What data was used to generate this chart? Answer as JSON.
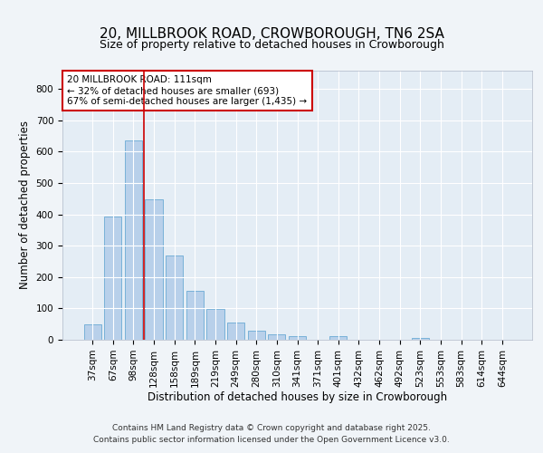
{
  "title_line1": "20, MILLBROOK ROAD, CROWBOROUGH, TN6 2SA",
  "title_line2": "Size of property relative to detached houses in Crowborough",
  "xlabel": "Distribution of detached houses by size in Crowborough",
  "ylabel": "Number of detached properties",
  "categories": [
    "37sqm",
    "67sqm",
    "98sqm",
    "128sqm",
    "158sqm",
    "189sqm",
    "219sqm",
    "249sqm",
    "280sqm",
    "310sqm",
    "341sqm",
    "371sqm",
    "401sqm",
    "432sqm",
    "462sqm",
    "492sqm",
    "523sqm",
    "553sqm",
    "583sqm",
    "614sqm",
    "644sqm"
  ],
  "values": [
    50,
    393,
    635,
    447,
    270,
    157,
    98,
    55,
    28,
    18,
    12,
    0,
    12,
    0,
    0,
    0,
    7,
    0,
    0,
    0,
    0
  ],
  "bar_color": "#b8d0ea",
  "bar_edge_color": "#6aaad4",
  "annotation_text": "20 MILLBROOK ROAD: 111sqm\n← 32% of detached houses are smaller (693)\n67% of semi-detached houses are larger (1,435) →",
  "annotation_box_color": "#ffffff",
  "annotation_box_edge": "#cc0000",
  "red_line_x": 2.5,
  "ylim": [
    0,
    860
  ],
  "yticks": [
    0,
    100,
    200,
    300,
    400,
    500,
    600,
    700,
    800
  ],
  "background_color": "#f0f4f8",
  "plot_bg_color": "#e4edf5",
  "footer_line1": "Contains HM Land Registry data © Crown copyright and database right 2025.",
  "footer_line2": "Contains public sector information licensed under the Open Government Licence v3.0.",
  "title_fontsize": 11,
  "subtitle_fontsize": 9,
  "axis_label_fontsize": 8.5,
  "tick_fontsize": 7.5,
  "annotation_fontsize": 7.5,
  "footer_fontsize": 6.5
}
